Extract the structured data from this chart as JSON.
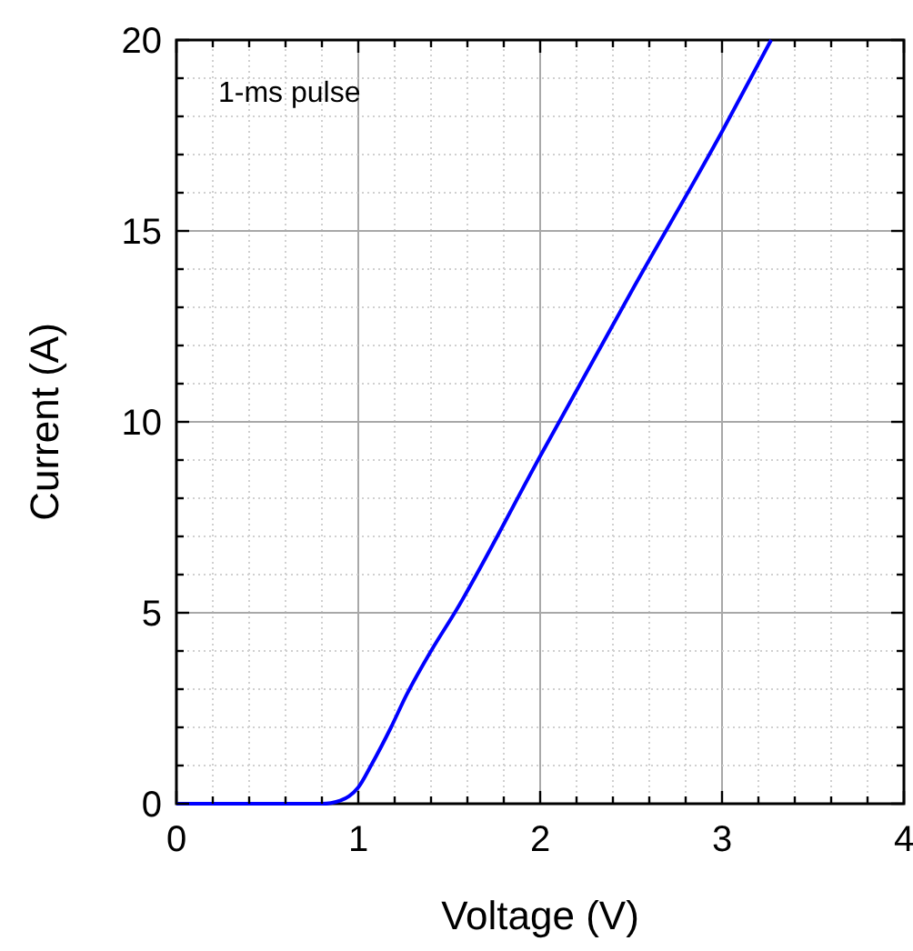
{
  "chart_data": {
    "type": "line",
    "xlabel": "Voltage (V)",
    "ylabel": "Current (A)",
    "annotations": [
      "1-ms pulse"
    ],
    "x": [
      0,
      0.5,
      0.8,
      0.85,
      0.9,
      0.95,
      1.0,
      1.07,
      1.18,
      1.26,
      1.4,
      1.53,
      2.0,
      2.5,
      3.0,
      3.27
    ],
    "series": [
      {
        "color": "#0000ff",
        "values": [
          0,
          0,
          0,
          0.02,
          0.08,
          0.2,
          0.43,
          1,
          2,
          2.8,
          4,
          5,
          9.1,
          13.4,
          17.6,
          20
        ]
      }
    ],
    "xlim": [
      0,
      4
    ],
    "ylim": [
      0,
      20
    ],
    "xticks": [
      0,
      {
        "value": 0.2,
        "label": null
      },
      {
        "value": 0.4,
        "label": null
      },
      {
        "value": 0.6,
        "label": null
      },
      {
        "value": 0.8,
        "label": null
      },
      1,
      {
        "value": 1.2,
        "label": null
      },
      {
        "value": 1.4,
        "label": null
      },
      {
        "value": 1.6,
        "label": null
      },
      {
        "value": 1.8,
        "label": null
      },
      2,
      {
        "value": 2.2,
        "label": null
      },
      {
        "value": 2.4,
        "label": null
      },
      {
        "value": 2.6,
        "label": null
      },
      {
        "value": 2.8,
        "label": null
      },
      3,
      {
        "value": 3.2,
        "label": null
      },
      {
        "value": 3.4,
        "label": null
      },
      {
        "value": 3.6,
        "label": null
      },
      {
        "value": 3.8,
        "label": null
      },
      4
    ],
    "yticks": [
      0,
      {
        "value": 1,
        "label": null
      },
      {
        "value": 2,
        "label": null
      },
      {
        "value": 3,
        "label": null
      },
      {
        "value": 4,
        "label": null
      },
      5,
      {
        "value": 6,
        "label": null
      },
      {
        "value": 7,
        "label": null
      },
      {
        "value": 8,
        "label": null
      },
      {
        "value": 9,
        "label": null
      },
      10,
      {
        "value": 11,
        "label": null
      },
      {
        "value": 12,
        "label": null
      },
      {
        "value": 13,
        "label": null
      },
      {
        "value": 14,
        "label": null
      },
      15,
      {
        "value": 16,
        "label": null
      },
      {
        "value": 17,
        "label": null
      },
      {
        "value": 18,
        "label": null
      },
      {
        "value": 19,
        "label": null
      },
      20
    ],
    "grid": true,
    "line_style": "solid"
  }
}
